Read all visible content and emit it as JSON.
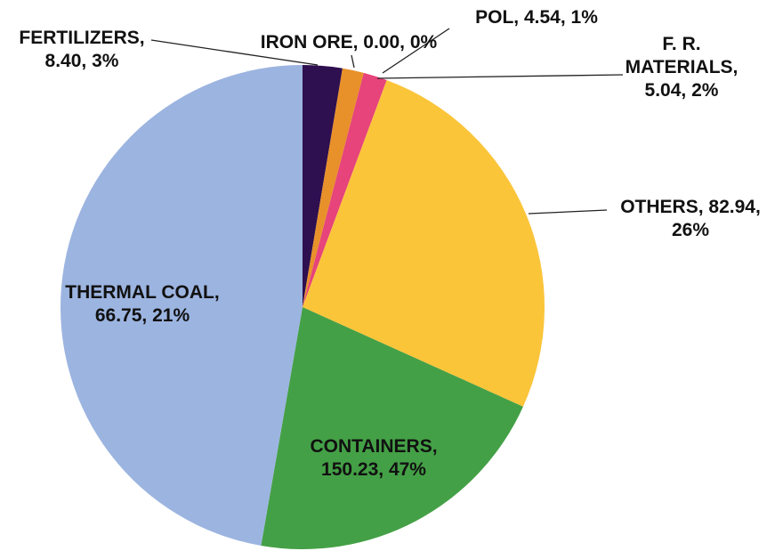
{
  "chart_data": {
    "type": "pie",
    "categories": [
      "FERTILIZERS",
      "IRON ORE",
      "POL",
      "F. R. MATERIALS",
      "OTHERS",
      "THERMAL COAL",
      "CONTAINERS"
    ],
    "values": [
      8.4,
      0.0,
      4.54,
      5.04,
      82.94,
      66.75,
      150.23
    ],
    "value_labels": [
      "8.40",
      "0.00",
      "4.54",
      "5.04",
      "82.94",
      "66.75",
      "150.23"
    ],
    "percent_labels": [
      "3%",
      "0%",
      "1%",
      "2%",
      "26%",
      "21%",
      "47%"
    ],
    "label_separator": ", ",
    "colors": [
      "#2e0f4f",
      "#7f7f7f",
      "#e8912a",
      "#e6447a",
      "#fbc53a",
      "#44a046",
      "#9cb4e0"
    ]
  }
}
